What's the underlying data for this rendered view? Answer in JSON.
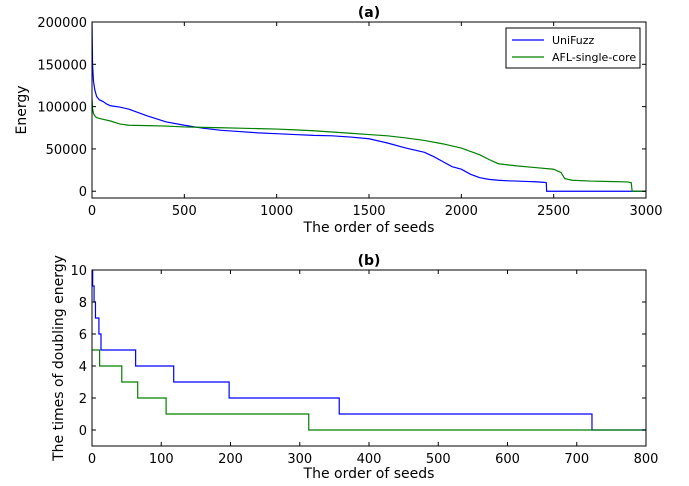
{
  "chart_data": [
    {
      "type": "line",
      "title": "(a)",
      "xlabel": "The order of seeds",
      "ylabel": "Energy",
      "xlim": [
        0,
        3000
      ],
      "ylim": [
        -8000,
        200000
      ],
      "xticks": [
        "0",
        "500",
        "1000",
        "1500",
        "2000",
        "2500",
        "3000"
      ],
      "yticks": [
        "0",
        "50000",
        "100000",
        "150000",
        "200000"
      ],
      "xtick_values": [
        0,
        500,
        1000,
        1500,
        2000,
        2500,
        3000
      ],
      "ytick_values": [
        0,
        50000,
        100000,
        150000,
        200000
      ],
      "legend": {
        "position": "top-right",
        "entries": [
          "UniFuzz",
          "AFL-single-core"
        ]
      },
      "grid": false,
      "series": [
        {
          "name": "UniFuzz",
          "color": "#0000ff",
          "step": false,
          "x": [
            0,
            3,
            8,
            15,
            25,
            40,
            60,
            80,
            100,
            150,
            200,
            300,
            400,
            500,
            600,
            700,
            800,
            900,
            1000,
            1100,
            1200,
            1300,
            1400,
            1500,
            1600,
            1700,
            1800,
            1850,
            1900,
            1950,
            2000,
            2050,
            2100,
            2150,
            2200,
            2250,
            2300,
            2350,
            2400,
            2450,
            2460,
            2462,
            2600,
            2800,
            3000
          ],
          "y": [
            200000,
            150000,
            130000,
            120000,
            112000,
            108000,
            106000,
            103000,
            101000,
            99500,
            97000,
            89000,
            82000,
            78000,
            74500,
            72000,
            70500,
            69000,
            68000,
            67000,
            66000,
            65500,
            64000,
            62000,
            57000,
            51000,
            46000,
            41000,
            35000,
            29000,
            26000,
            20000,
            16000,
            14000,
            13000,
            12300,
            12000,
            11600,
            11200,
            10500,
            10000,
            0,
            0,
            0,
            0
          ]
        },
        {
          "name": "AFL-single-core",
          "color": "#008000",
          "step": false,
          "x": [
            0,
            3,
            8,
            15,
            25,
            40,
            60,
            100,
            150,
            200,
            300,
            400,
            500,
            600,
            700,
            800,
            900,
            1000,
            1100,
            1200,
            1300,
            1400,
            1500,
            1600,
            1700,
            1800,
            1900,
            2000,
            2050,
            2100,
            2150,
            2200,
            2300,
            2400,
            2500,
            2540,
            2560,
            2600,
            2700,
            2800,
            2900,
            2920,
            2925,
            3000
          ],
          "y": [
            110000,
            98000,
            92000,
            89000,
            87000,
            86000,
            85000,
            83000,
            79500,
            78000,
            77500,
            77000,
            76000,
            75500,
            75000,
            74500,
            74000,
            73500,
            72500,
            71500,
            70000,
            68500,
            67000,
            65500,
            63000,
            60000,
            56000,
            51000,
            47000,
            43000,
            37500,
            32500,
            30000,
            28000,
            26000,
            22000,
            15000,
            13000,
            12000,
            11500,
            11000,
            10000,
            0,
            0
          ]
        }
      ]
    },
    {
      "type": "line",
      "title": "(b)",
      "xlabel": "The order of seeds",
      "ylabel": "The times of doubling energy",
      "xlim": [
        0,
        800
      ],
      "ylim": [
        -1,
        10
      ],
      "xticks": [
        "0",
        "100",
        "200",
        "300",
        "400",
        "500",
        "600",
        "700",
        "800"
      ],
      "yticks": [
        "0",
        "2",
        "4",
        "6",
        "8",
        "10"
      ],
      "xtick_values": [
        0,
        100,
        200,
        300,
        400,
        500,
        600,
        700,
        800
      ],
      "ytick_values": [
        0,
        2,
        4,
        6,
        8,
        10
      ],
      "legend": null,
      "grid": false,
      "series": [
        {
          "name": "UniFuzz",
          "color": "#0000ff",
          "step": true,
          "x": [
            0,
            1,
            3,
            5,
            10,
            13,
            17,
            63,
            118,
            198,
            357,
            722,
            800
          ],
          "y": [
            10,
            9,
            8,
            7,
            6,
            5,
            5,
            4,
            3,
            2,
            1,
            0,
            0
          ]
        },
        {
          "name": "AFL-single-core",
          "color": "#008000",
          "step": true,
          "x": [
            0,
            11,
            43,
            66,
            107,
            313,
            800
          ],
          "y": [
            5,
            4,
            3,
            2,
            1,
            0,
            0
          ]
        }
      ]
    }
  ]
}
